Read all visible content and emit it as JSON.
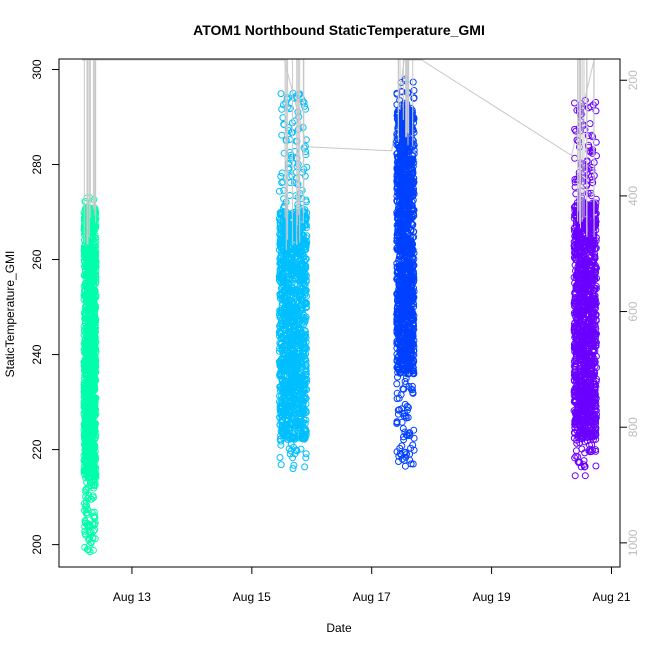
{
  "chart_data": {
    "type": "scatter",
    "title": "ATOM1 Northbound StaticTemperature_GMI",
    "xlabel": "Date",
    "ylabel": "StaticTemperature_GMI",
    "x_axis": {
      "type": "date",
      "range": [
        "2019-08-11T19:12",
        "2019-08-21T03:00"
      ],
      "ticks": [
        {
          "value": "2019-08-13",
          "label": "Aug 13"
        },
        {
          "value": "2019-08-15",
          "label": "Aug 15"
        },
        {
          "value": "2019-08-17",
          "label": "Aug 17"
        },
        {
          "value": "2019-08-19",
          "label": "Aug 19"
        },
        {
          "value": "2019-08-21",
          "label": "Aug 21"
        }
      ]
    },
    "y_axis_left": {
      "label": "StaticTemperature_GMI",
      "range": [
        195.5,
        302
      ],
      "ticks": [
        200,
        220,
        240,
        260,
        280,
        300
      ]
    },
    "y_axis_right": {
      "description": "pressure (secondary axis, reversed, grey)",
      "range": [
        1040,
        165
      ],
      "reversed": true,
      "ticks": [
        200,
        400,
        600,
        800,
        1000
      ],
      "color": "#bdbdbd"
    },
    "grid": false,
    "legend": "none",
    "series": [
      {
        "color": "#00ffaa",
        "x_range": [
          "2019-08-12T04:48",
          "2019-08-12T09:36"
        ],
        "y_min": 198.5,
        "y_max": 273,
        "y_core": [
          214,
          271
        ],
        "marker": "open-circle"
      },
      {
        "color": "#00bfff",
        "x_range": [
          "2019-08-15T11:00",
          "2019-08-15T22:00"
        ],
        "y_min": 216,
        "y_max": 295,
        "y_core": [
          222,
          270
        ],
        "marker": "open-circle"
      },
      {
        "color": "#0040ff",
        "x_range": [
          "2019-08-17T10:00",
          "2019-08-17T17:00"
        ],
        "y_min": 216.5,
        "y_max": 298,
        "y_core": [
          236,
          292
        ],
        "marker": "open-circle"
      },
      {
        "color": "#6a00ff",
        "x_range": [
          "2019-08-20T09:00",
          "2019-08-20T18:00"
        ],
        "y_min": 214.5,
        "y_max": 293.5,
        "y_core": [
          222,
          272
        ],
        "marker": "open-circle"
      }
    ],
    "pressure_line": {
      "color": "#c8c8c8",
      "points": [
        {
          "x": "2019-08-12T04:00",
          "p": 165
        },
        {
          "x": "2019-08-12T09:00",
          "p": 165
        },
        {
          "x": "2019-08-15T13:00",
          "p": 165
        },
        {
          "x": "2019-08-15T22:00",
          "p": 315
        },
        {
          "x": "2019-08-17T08:00",
          "p": 322
        },
        {
          "x": "2019-08-17T13:00",
          "p": 165
        },
        {
          "x": "2019-08-17T20:00",
          "p": 165
        },
        {
          "x": "2019-08-20T08:00",
          "p": 330
        },
        {
          "x": "2019-08-20T17:00",
          "p": 165
        }
      ]
    }
  }
}
